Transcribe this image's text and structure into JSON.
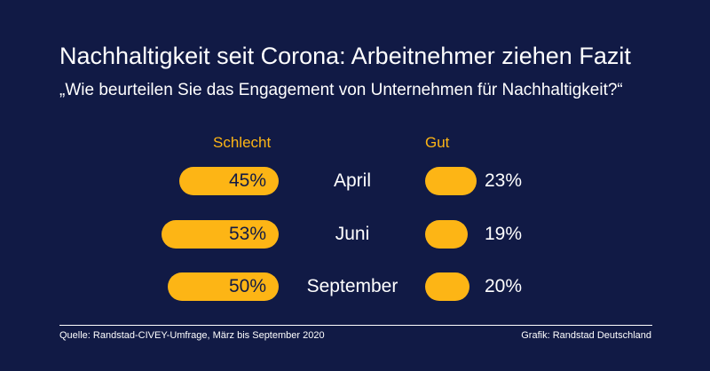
{
  "title": "Nachhaltigkeit seit Corona: Arbeitnehmer ziehen Fazit",
  "subtitle": "„Wie beurteilen Sie das Engagement von Unternehmen für Nachhaltigkeit?“",
  "colors": {
    "background": "#111a45",
    "bar": "#fdb515"
  },
  "chart_data": {
    "type": "bar",
    "categories": [
      "April",
      "Juni",
      "September"
    ],
    "series": [
      {
        "name": "Schlecht",
        "values": [
          45,
          53,
          50
        ],
        "labels": [
          "45%",
          "53%",
          "50%"
        ]
      },
      {
        "name": "Gut",
        "values": [
          23,
          19,
          20
        ],
        "labels": [
          "23%",
          "19%",
          "20%"
        ]
      }
    ],
    "unit": "%"
  },
  "footer": {
    "source": "Quelle: Randstad-CIVEY-Umfrage, März bis September 2020",
    "credit": "Grafik: Randstad Deutschland"
  }
}
